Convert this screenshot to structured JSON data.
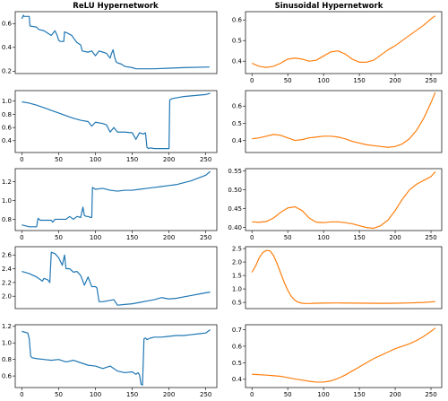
{
  "figure": {
    "columns": [
      {
        "title": "ReLU Hypernetwork",
        "color": "#1f77b4"
      },
      {
        "title": "Sinusoidal Hypernetwork",
        "color": "#ff7f0e"
      }
    ]
  },
  "chart_data": [
    {
      "type": "line",
      "title": "ReLU Hypernetwork",
      "column": 0,
      "row": 0,
      "xlim": [
        -9,
        265
      ],
      "ylim": [
        0.18,
        0.7
      ],
      "yticks": [
        0.2,
        0.4,
        0.6
      ],
      "ytick_labels": [
        "0.2",
        "0.4",
        "0.6"
      ],
      "xticks": [],
      "xtick_labels": [],
      "series": [
        {
          "x": [
            0,
            2,
            3,
            10,
            11,
            20,
            23,
            30,
            35,
            40,
            45,
            48,
            50,
            52,
            57,
            58,
            62,
            68,
            70,
            75,
            80,
            82,
            90,
            95,
            100,
            105,
            110,
            115,
            120,
            122,
            124,
            126,
            128,
            130,
            135,
            140,
            150,
            155,
            160,
            180,
            200,
            220,
            255
          ],
          "y": [
            0.64,
            0.67,
            0.66,
            0.66,
            0.58,
            0.57,
            0.55,
            0.54,
            0.52,
            0.5,
            0.54,
            0.5,
            0.46,
            0.45,
            0.45,
            0.53,
            0.52,
            0.5,
            0.48,
            0.44,
            0.42,
            0.37,
            0.36,
            0.37,
            0.33,
            0.37,
            0.36,
            0.35,
            0.31,
            0.35,
            0.38,
            0.32,
            0.28,
            0.27,
            0.26,
            0.24,
            0.23,
            0.22,
            0.22,
            0.22,
            0.225,
            0.23,
            0.235
          ]
        }
      ]
    },
    {
      "type": "line",
      "title": "Sinusoidal Hypernetwork",
      "column": 1,
      "row": 0,
      "xlim": [
        -9,
        265
      ],
      "ylim": [
        0.34,
        0.64
      ],
      "yticks": [
        0.4,
        0.5,
        0.6
      ],
      "ytick_labels": [
        "0.4",
        "0.5",
        "0.6"
      ],
      "xticks": [
        0,
        50,
        100,
        150,
        200,
        250
      ],
      "xtick_labels": [
        "0",
        "50",
        "100",
        "150",
        "200",
        "250"
      ],
      "series": [
        {
          "x": [
            0,
            10,
            20,
            30,
            40,
            50,
            60,
            70,
            80,
            90,
            100,
            110,
            120,
            130,
            140,
            150,
            160,
            170,
            180,
            190,
            200,
            210,
            220,
            230,
            240,
            250,
            256
          ],
          "y": [
            0.39,
            0.375,
            0.37,
            0.375,
            0.39,
            0.41,
            0.415,
            0.41,
            0.4,
            0.405,
            0.425,
            0.445,
            0.45,
            0.435,
            0.41,
            0.395,
            0.395,
            0.405,
            0.43,
            0.455,
            0.475,
            0.5,
            0.525,
            0.55,
            0.575,
            0.605,
            0.62
          ]
        }
      ]
    },
    {
      "type": "line",
      "column": 0,
      "row": 1,
      "xlim": [
        -9,
        265
      ],
      "ylim": [
        0.22,
        1.16
      ],
      "yticks": [
        0.4,
        0.6,
        0.8,
        1.0
      ],
      "ytick_labels": [
        "0.4",
        "0.6",
        "0.8",
        "1.0"
      ],
      "xticks": [
        0,
        50,
        100,
        150,
        200,
        250
      ],
      "xtick_labels": [
        "0",
        "50",
        "100",
        "150",
        "200",
        "250"
      ],
      "series": [
        {
          "x": [
            0,
            10,
            20,
            30,
            40,
            50,
            60,
            70,
            80,
            90,
            95,
            100,
            110,
            115,
            120,
            125,
            130,
            140,
            150,
            155,
            160,
            165,
            168,
            170,
            172,
            175,
            180,
            190,
            200,
            201,
            205,
            210,
            215,
            220,
            230,
            240,
            250,
            256
          ],
          "y": [
            0.99,
            0.97,
            0.94,
            0.9,
            0.86,
            0.82,
            0.78,
            0.74,
            0.71,
            0.69,
            0.62,
            0.68,
            0.66,
            0.64,
            0.53,
            0.6,
            0.53,
            0.53,
            0.52,
            0.42,
            0.52,
            0.5,
            0.52,
            0.3,
            0.28,
            0.29,
            0.28,
            0.28,
            0.28,
            1.02,
            1.04,
            1.05,
            1.06,
            1.07,
            1.08,
            1.09,
            1.1,
            1.12
          ]
        }
      ]
    },
    {
      "type": "line",
      "column": 1,
      "row": 1,
      "xlim": [
        -9,
        265
      ],
      "ylim": [
        0.33,
        0.69
      ],
      "yticks": [
        0.4,
        0.5,
        0.6
      ],
      "ytick_labels": [
        "0.4",
        "0.5",
        "0.6"
      ],
      "xticks": [],
      "xtick_labels": [],
      "series": [
        {
          "x": [
            0,
            10,
            20,
            30,
            40,
            50,
            60,
            70,
            80,
            90,
            100,
            110,
            120,
            130,
            140,
            150,
            160,
            170,
            180,
            190,
            200,
            210,
            220,
            230,
            240,
            250,
            256
          ],
          "y": [
            0.41,
            0.415,
            0.425,
            0.435,
            0.43,
            0.415,
            0.4,
            0.405,
            0.415,
            0.42,
            0.425,
            0.425,
            0.42,
            0.41,
            0.395,
            0.385,
            0.375,
            0.37,
            0.365,
            0.36,
            0.365,
            0.38,
            0.41,
            0.46,
            0.53,
            0.62,
            0.68
          ]
        }
      ]
    },
    {
      "type": "line",
      "column": 0,
      "row": 2,
      "xlim": [
        -9,
        265
      ],
      "ylim": [
        0.68,
        1.34
      ],
      "yticks": [
        0.8,
        1.0,
        1.2
      ],
      "ytick_labels": [
        "0.8",
        "1.0",
        "1.2"
      ],
      "xticks": [
        0,
        50,
        100,
        150,
        200,
        250
      ],
      "xtick_labels": [
        "0",
        "50",
        "100",
        "150",
        "200",
        "250"
      ],
      "series": [
        {
          "x": [
            0,
            10,
            15,
            20,
            22,
            25,
            30,
            40,
            42,
            45,
            50,
            60,
            65,
            70,
            75,
            80,
            83,
            85,
            88,
            90,
            93,
            95,
            96,
            100,
            110,
            120,
            130,
            140,
            150,
            160,
            170,
            180,
            190,
            200,
            210,
            220,
            230,
            240,
            250,
            256
          ],
          "y": [
            0.74,
            0.72,
            0.72,
            0.72,
            0.81,
            0.79,
            0.79,
            0.79,
            0.77,
            0.8,
            0.8,
            0.8,
            0.83,
            0.8,
            0.83,
            0.82,
            0.93,
            0.84,
            0.83,
            0.83,
            0.82,
            0.82,
            1.14,
            1.12,
            1.13,
            1.11,
            1.1,
            1.11,
            1.11,
            1.12,
            1.13,
            1.14,
            1.15,
            1.16,
            1.17,
            1.19,
            1.21,
            1.24,
            1.27,
            1.31
          ]
        }
      ]
    },
    {
      "type": "line",
      "column": 1,
      "row": 2,
      "xlim": [
        -9,
        265
      ],
      "ylim": [
        0.392,
        0.556
      ],
      "yticks": [
        0.4,
        0.45,
        0.5,
        0.55
      ],
      "ytick_labels": [
        "0.40",
        "0.45",
        "0.50",
        "0.55"
      ],
      "xticks": [
        0,
        50,
        100,
        150,
        200,
        250
      ],
      "xtick_labels": [
        "0",
        "50",
        "100",
        "150",
        "200",
        "250"
      ],
      "series": [
        {
          "x": [
            0,
            10,
            20,
            30,
            40,
            50,
            60,
            70,
            80,
            90,
            100,
            110,
            120,
            130,
            140,
            150,
            160,
            170,
            180,
            190,
            200,
            210,
            220,
            230,
            240,
            250,
            256
          ],
          "y": [
            0.415,
            0.414,
            0.416,
            0.425,
            0.44,
            0.452,
            0.455,
            0.445,
            0.425,
            0.414,
            0.413,
            0.415,
            0.415,
            0.413,
            0.41,
            0.405,
            0.4,
            0.398,
            0.405,
            0.42,
            0.445,
            0.475,
            0.5,
            0.515,
            0.525,
            0.535,
            0.548
          ]
        }
      ]
    },
    {
      "type": "line",
      "column": 0,
      "row": 3,
      "xlim": [
        -9,
        265
      ],
      "ylim": [
        1.82,
        2.72
      ],
      "yticks": [
        2.0,
        2.2,
        2.4,
        2.6
      ],
      "ytick_labels": [
        "2.0",
        "2.2",
        "2.4",
        "2.6"
      ],
      "xticks": [],
      "xtick_labels": [],
      "series": [
        {
          "x": [
            0,
            10,
            20,
            28,
            30,
            35,
            38,
            40,
            45,
            50,
            55,
            58,
            60,
            65,
            70,
            75,
            80,
            85,
            90,
            95,
            100,
            102,
            105,
            110,
            115,
            120,
            125,
            130,
            140,
            150,
            160,
            170,
            180,
            190,
            200,
            210,
            220,
            230,
            240,
            250,
            256
          ],
          "y": [
            2.36,
            2.33,
            2.28,
            2.22,
            2.26,
            2.24,
            2.2,
            2.64,
            2.62,
            2.56,
            2.45,
            2.6,
            2.4,
            2.4,
            2.35,
            2.36,
            2.3,
            2.16,
            2.28,
            2.14,
            2.14,
            2.12,
            1.92,
            1.92,
            1.93,
            1.94,
            1.95,
            1.87,
            1.88,
            1.89,
            1.91,
            1.93,
            1.95,
            1.98,
            1.96,
            1.97,
            1.99,
            2.01,
            2.03,
            2.05,
            2.06
          ]
        }
      ]
    },
    {
      "type": "line",
      "column": 1,
      "row": 3,
      "xlim": [
        -9,
        265
      ],
      "ylim": [
        0.27,
        2.57
      ],
      "yticks": [
        0.5,
        1.0,
        1.5,
        2.0,
        2.5
      ],
      "ytick_labels": [
        "0.5",
        "1.0",
        "1.5",
        "2.0",
        "2.5"
      ],
      "xticks": [],
      "xtick_labels": [],
      "series": [
        {
          "x": [
            0,
            5,
            10,
            15,
            20,
            25,
            30,
            35,
            40,
            45,
            50,
            55,
            60,
            65,
            70,
            75,
            80,
            85,
            90,
            100,
            120,
            140,
            160,
            180,
            200,
            220,
            240,
            256
          ],
          "y": [
            1.62,
            1.85,
            2.15,
            2.35,
            2.43,
            2.42,
            2.25,
            1.95,
            1.6,
            1.25,
            0.95,
            0.72,
            0.58,
            0.5,
            0.47,
            0.46,
            0.46,
            0.465,
            0.47,
            0.475,
            0.48,
            0.475,
            0.47,
            0.465,
            0.47,
            0.48,
            0.5,
            0.53
          ]
        }
      ]
    },
    {
      "type": "line",
      "column": 0,
      "row": 4,
      "xlim": [
        -9,
        265
      ],
      "ylim": [
        0.46,
        1.22
      ],
      "yticks": [
        0.6,
        0.8,
        1.0,
        1.2
      ],
      "ytick_labels": [
        "0.6",
        "0.8",
        "1.0",
        "1.2"
      ],
      "xticks": [
        0,
        50,
        100,
        150,
        200,
        250
      ],
      "xtick_labels": [
        "0",
        "50",
        "100",
        "150",
        "200",
        "250"
      ],
      "series": [
        {
          "x": [
            0,
            8,
            10,
            12,
            14,
            20,
            30,
            40,
            50,
            60,
            70,
            80,
            90,
            100,
            110,
            120,
            130,
            140,
            150,
            155,
            158,
            160,
            162,
            164,
            166,
            168,
            170,
            175,
            180,
            190,
            200,
            210,
            220,
            230,
            240,
            250,
            256
          ],
          "y": [
            1.14,
            1.12,
            1.05,
            0.84,
            0.82,
            0.81,
            0.8,
            0.79,
            0.8,
            0.77,
            0.79,
            0.76,
            0.73,
            0.72,
            0.69,
            0.72,
            0.66,
            0.64,
            0.65,
            0.62,
            0.64,
            0.61,
            0.5,
            0.49,
            1.05,
            1.06,
            1.04,
            1.06,
            1.07,
            1.07,
            1.08,
            1.09,
            1.09,
            1.1,
            1.11,
            1.12,
            1.16
          ]
        }
      ]
    },
    {
      "type": "line",
      "column": 1,
      "row": 4,
      "xlim": [
        -9,
        265
      ],
      "ylim": [
        0.35,
        0.73
      ],
      "yticks": [
        0.4,
        0.5,
        0.6,
        0.7
      ],
      "ytick_labels": [
        "0.4",
        "0.5",
        "0.6",
        "0.7"
      ],
      "xticks": [
        0,
        50,
        100,
        150,
        200,
        250
      ],
      "xtick_labels": [
        "0",
        "50",
        "100",
        "150",
        "200",
        "250"
      ],
      "series": [
        {
          "x": [
            0,
            10,
            20,
            30,
            40,
            50,
            60,
            70,
            80,
            90,
            100,
            110,
            120,
            130,
            140,
            150,
            160,
            170,
            180,
            190,
            200,
            210,
            220,
            230,
            240,
            250,
            256
          ],
          "y": [
            0.43,
            0.428,
            0.425,
            0.422,
            0.418,
            0.41,
            0.402,
            0.395,
            0.388,
            0.383,
            0.383,
            0.39,
            0.405,
            0.425,
            0.45,
            0.475,
            0.5,
            0.525,
            0.545,
            0.565,
            0.585,
            0.6,
            0.615,
            0.635,
            0.66,
            0.69,
            0.71
          ]
        }
      ]
    }
  ]
}
